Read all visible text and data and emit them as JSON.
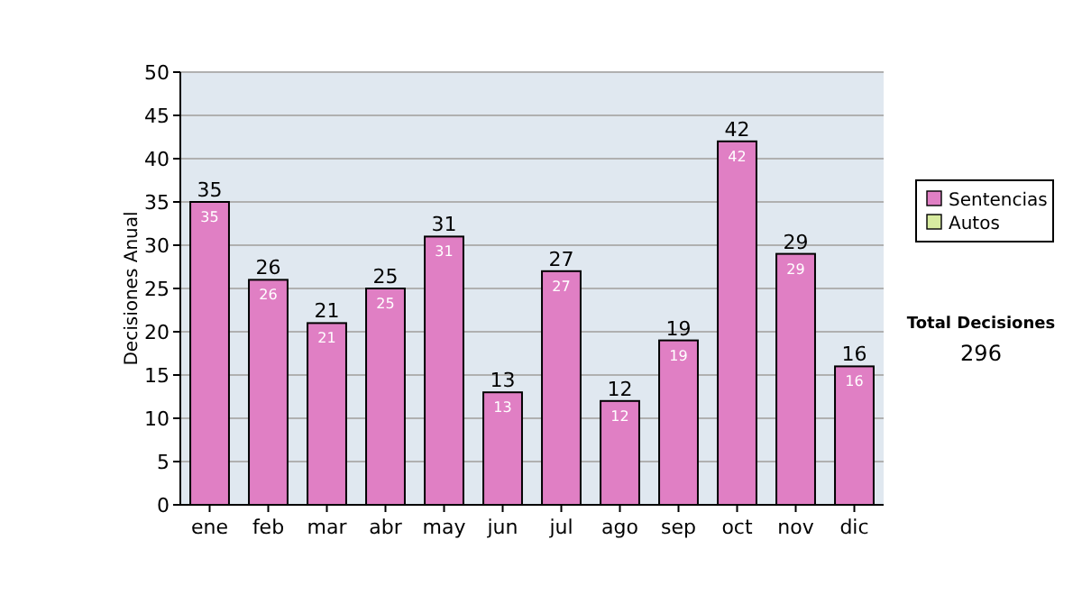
{
  "chart_data": {
    "type": "bar",
    "ylabel": "Decisiones Anual",
    "categories": [
      "ene",
      "feb",
      "mar",
      "abr",
      "may",
      "jun",
      "jul",
      "ago",
      "sep",
      "oct",
      "nov",
      "dic"
    ],
    "series": [
      {
        "name": "Sentencias",
        "color": "#e07fc4",
        "values": [
          35,
          26,
          21,
          25,
          31,
          13,
          27,
          12,
          19,
          42,
          29,
          16
        ],
        "value_labels": [
          "35",
          "26",
          "21",
          "25",
          "31",
          "13",
          "27",
          "12",
          "19",
          "42",
          "29",
          "16"
        ]
      },
      {
        "name": "Autos",
        "color": "#d8eca0",
        "values": [
          null,
          null,
          null,
          null,
          null,
          null,
          null,
          null,
          null,
          null,
          null,
          null
        ]
      }
    ],
    "stacked": true,
    "totals": [
      "35",
      "26",
      "21",
      "25",
      "31",
      "13",
      "27",
      "12",
      "19",
      "42",
      "29",
      "16"
    ],
    "ylim": [
      0,
      50
    ],
    "yticks": [
      0,
      5,
      10,
      15,
      20,
      25,
      30,
      35,
      40,
      45,
      50
    ],
    "grid": "y",
    "legend": "right",
    "annotations": [
      "Total Decisiones",
      "296"
    ]
  }
}
